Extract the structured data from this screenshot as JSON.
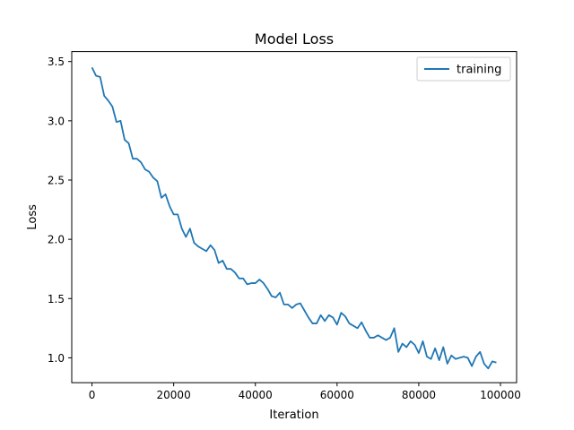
{
  "chart_data": {
    "type": "line",
    "title": "Model Loss",
    "xlabel": "Iteration",
    "ylabel": "Loss",
    "xlim": [
      -4950,
      103950
    ],
    "ylim": [
      0.79,
      3.584
    ],
    "xticks": [
      0,
      20000,
      40000,
      60000,
      80000,
      100000
    ],
    "xtick_labels": [
      "0",
      "20000",
      "40000",
      "60000",
      "80000",
      "100000"
    ],
    "yticks": [
      1.0,
      1.5,
      2.0,
      2.5,
      3.0,
      3.5
    ],
    "ytick_labels": [
      "1.0",
      "1.5",
      "2.0",
      "2.5",
      "3.0",
      "3.5"
    ],
    "grid": false,
    "legend": {
      "position": "top-right",
      "entries": [
        "training"
      ]
    },
    "series": [
      {
        "name": "training",
        "color": "#1f77b4",
        "x": [
          0,
          1000,
          2000,
          3000,
          4000,
          5000,
          6000,
          7000,
          8000,
          9000,
          10000,
          11000,
          12000,
          13000,
          14000,
          15000,
          16000,
          17000,
          18000,
          19000,
          20000,
          21000,
          22000,
          23000,
          24000,
          25000,
          26000,
          27000,
          28000,
          29000,
          30000,
          31000,
          32000,
          33000,
          34000,
          35000,
          36000,
          37000,
          38000,
          39000,
          40000,
          41000,
          42000,
          43000,
          44000,
          45000,
          46000,
          47000,
          48000,
          49000,
          50000,
          51000,
          52000,
          53000,
          54000,
          55000,
          56000,
          57000,
          58000,
          59000,
          60000,
          61000,
          62000,
          63000,
          64000,
          65000,
          66000,
          67000,
          68000,
          69000,
          70000,
          71000,
          72000,
          73000,
          74000,
          75000,
          76000,
          77000,
          78000,
          79000,
          80000,
          81000,
          82000,
          83000,
          84000,
          85000,
          86000,
          87000,
          88000,
          89000,
          90000,
          91000,
          92000,
          93000,
          94000,
          95000,
          96000,
          97000,
          98000,
          99000
        ],
        "y": [
          3.45,
          3.38,
          3.37,
          3.21,
          3.17,
          3.12,
          2.99,
          3.0,
          2.84,
          2.81,
          2.68,
          2.68,
          2.65,
          2.59,
          2.57,
          2.52,
          2.49,
          2.35,
          2.38,
          2.28,
          2.21,
          2.21,
          2.09,
          2.02,
          2.09,
          1.97,
          1.94,
          1.92,
          1.9,
          1.95,
          1.91,
          1.8,
          1.82,
          1.75,
          1.75,
          1.72,
          1.67,
          1.67,
          1.62,
          1.63,
          1.63,
          1.66,
          1.63,
          1.58,
          1.52,
          1.51,
          1.55,
          1.45,
          1.45,
          1.42,
          1.45,
          1.46,
          1.4,
          1.34,
          1.29,
          1.29,
          1.36,
          1.31,
          1.36,
          1.34,
          1.28,
          1.38,
          1.35,
          1.29,
          1.27,
          1.25,
          1.3,
          1.23,
          1.17,
          1.17,
          1.19,
          1.17,
          1.15,
          1.17,
          1.25,
          1.05,
          1.12,
          1.09,
          1.14,
          1.11,
          1.04,
          1.14,
          1.01,
          0.99,
          1.08,
          0.98,
          1.09,
          0.95,
          1.02,
          0.99,
          1.0,
          1.01,
          1.0,
          0.93,
          1.01,
          1.05,
          0.95,
          0.91,
          0.97,
          0.96
        ]
      }
    ]
  }
}
